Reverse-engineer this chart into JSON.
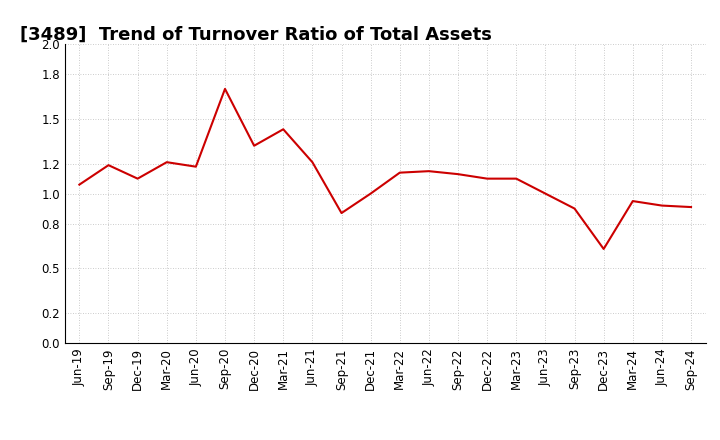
{
  "title": "[3489]  Trend of Turnover Ratio of Total Assets",
  "labels": [
    "Jun-19",
    "Sep-19",
    "Dec-19",
    "Mar-20",
    "Jun-20",
    "Sep-20",
    "Dec-20",
    "Mar-21",
    "Jun-21",
    "Sep-21",
    "Dec-21",
    "Mar-22",
    "Jun-22",
    "Sep-22",
    "Dec-22",
    "Mar-23",
    "Jun-23",
    "Sep-23",
    "Dec-23",
    "Mar-24",
    "Jun-24",
    "Sep-24"
  ],
  "values": [
    1.06,
    1.19,
    1.1,
    1.21,
    1.18,
    1.7,
    1.32,
    1.43,
    1.21,
    0.87,
    1.0,
    1.14,
    1.15,
    1.13,
    1.1,
    1.1,
    1.0,
    0.9,
    0.63,
    0.95,
    0.92,
    0.91
  ],
  "line_color": "#cc0000",
  "background_color": "#ffffff",
  "grid_color": "#bbbbbb",
  "ylim": [
    0.0,
    2.0
  ],
  "yticks": [
    0.0,
    0.2,
    0.5,
    0.8,
    1.0,
    1.2,
    1.5,
    1.8,
    2.0
  ],
  "title_fontsize": 13,
  "tick_fontsize": 8.5
}
